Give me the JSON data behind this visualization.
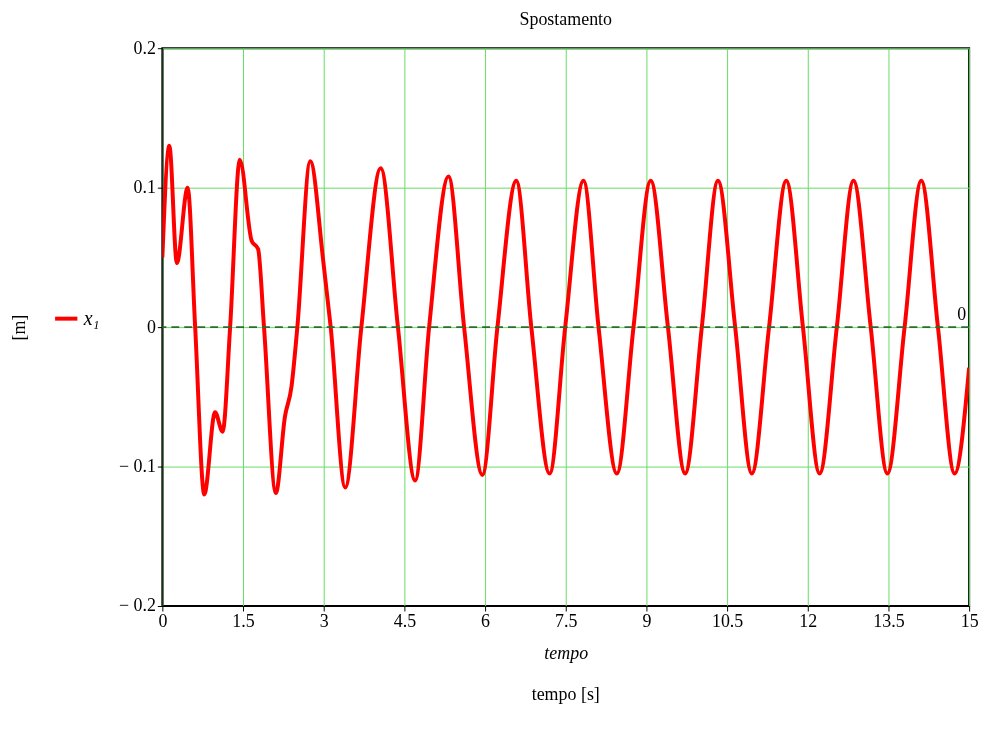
{
  "chart_data": {
    "type": "line",
    "title": "Spostamento",
    "xlabel": "tempo",
    "ylabel": "[m]",
    "annotations": [
      "tempo [s]"
    ],
    "x": [
      0,
      0.13,
      0.27,
      0.47,
      0.61,
      0.78,
      0.98,
      1.12,
      1.26,
      1.44,
      1.66,
      1.78,
      1.89,
      2.11,
      2.28,
      2.4,
      2.51,
      2.75,
      2.99,
      3.13,
      3.4,
      3.7,
      4.06,
      4.38,
      4.7,
      4.96,
      5.32,
      5.61,
      5.95,
      6.23,
      6.58,
      6.86,
      7.2,
      7.49,
      7.83,
      8.11,
      8.45,
      8.76,
      9.08,
      9.4,
      9.72,
      10.03,
      10.33,
      10.65,
      10.96,
      11.28,
      11.6,
      11.91,
      12.22,
      12.54,
      12.85,
      13.17,
      13.48,
      13.8,
      14.11,
      14.42,
      14.73,
      15
    ],
    "series": [
      {
        "name": "x₁",
        "color": "#ff0000",
        "values": [
          0.05,
          0.13,
          0.046,
          0.1,
          0,
          -0.12,
          -0.061,
          -0.075,
          0,
          0.12,
          0.062,
          0.056,
          0,
          -0.119,
          -0.064,
          -0.043,
          0,
          0.119,
          0.048,
          0,
          -0.115,
          0,
          0.114,
          0,
          -0.11,
          0,
          0.108,
          0,
          -0.106,
          0,
          0.105,
          0,
          -0.105,
          0,
          0.105,
          0,
          -0.105,
          0,
          0.105,
          0,
          -0.105,
          0,
          0.105,
          0,
          -0.105,
          0,
          0.105,
          0,
          -0.105,
          0,
          0.105,
          0,
          -0.105,
          0,
          0.105,
          0,
          -0.105,
          -0.029
        ]
      }
    ],
    "xlim": [
      0,
      15
    ],
    "xticks": [
      0,
      1.5,
      3,
      4.5,
      6,
      7.5,
      9,
      10.5,
      12,
      13.5,
      15
    ],
    "ylim": [
      -0.2,
      0.2
    ],
    "yticks": [
      {
        "value": -0.2,
        "label": "− 0.2"
      },
      {
        "value": -0.1,
        "label": "− 0.1"
      },
      0,
      0.1,
      0.2
    ],
    "ref_lines": [
      {
        "axis": "y",
        "value": 0,
        "label": "0",
        "color": "#2e6b2e",
        "line_style": "dashed"
      }
    ],
    "grid": true,
    "legend": "left",
    "marker": "none",
    "line_style": "solid"
  }
}
